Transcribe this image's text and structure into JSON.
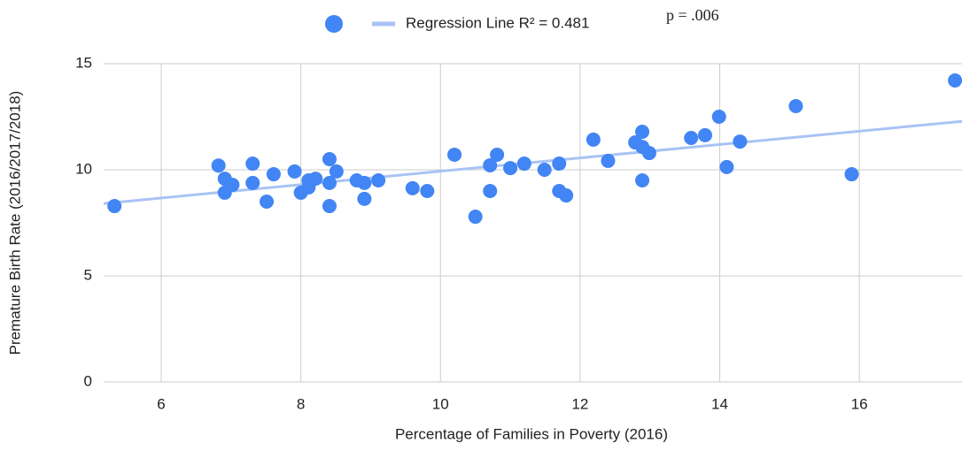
{
  "chart_data": {
    "type": "scatter",
    "x_label": "Percentage of Families in Poverty (2016)",
    "y_label": "Premature Birth Rate (2016/2017/2018)",
    "xlim": [
      5.175,
      17.47
    ],
    "ylim": [
      0,
      15
    ],
    "xticks": [
      6,
      8,
      10,
      12,
      14,
      16
    ],
    "yticks": [
      0,
      5,
      10,
      15
    ],
    "grid": true,
    "series": [
      {
        "name": null,
        "color": "#4285f4",
        "x": [
          5.33,
          6.82,
          6.91,
          6.91,
          7.02,
          7.31,
          7.31,
          7.51,
          7.61,
          7.91,
          8.0,
          8.11,
          8.11,
          8.21,
          8.41,
          8.41,
          8.41,
          8.51,
          8.8,
          8.91,
          8.91,
          9.11,
          9.6,
          9.81,
          10.2,
          10.5,
          10.71,
          10.71,
          10.81,
          11.0,
          11.2,
          11.49,
          11.7,
          11.7,
          11.8,
          12.19,
          12.4,
          12.79,
          12.89,
          12.89,
          12.89,
          12.99,
          13.59,
          13.79,
          13.99,
          14.1,
          14.29,
          15.09,
          15.89,
          17.37
        ],
        "values": [
          8.29,
          10.2,
          9.58,
          8.92,
          9.29,
          10.29,
          9.38,
          8.5,
          9.79,
          9.92,
          8.92,
          9.5,
          9.17,
          9.58,
          10.5,
          9.38,
          8.29,
          9.92,
          9.5,
          9.38,
          8.63,
          9.5,
          9.13,
          9.0,
          10.71,
          7.79,
          9.0,
          10.21,
          10.71,
          10.08,
          10.29,
          10.0,
          9.0,
          10.29,
          8.79,
          11.42,
          10.42,
          11.29,
          11.79,
          11.08,
          9.5,
          10.79,
          11.5,
          11.63,
          12.5,
          10.13,
          11.33,
          13.0,
          9.79,
          14.21
        ]
      }
    ],
    "trendline": {
      "name": "Regression Line R² = 0.481",
      "color": "#a8c3f5",
      "slope": 0.315,
      "intercept": 6.78
    },
    "annotation": "p = .006"
  }
}
